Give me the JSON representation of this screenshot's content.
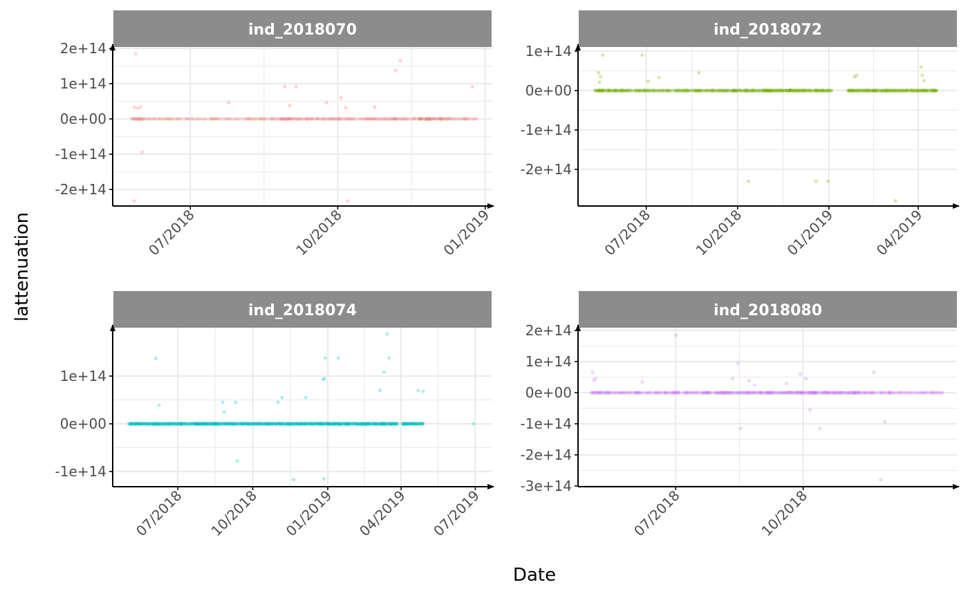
{
  "chart_data": {
    "type": "scatter",
    "layout": "facet_wrap 2x2, free scales",
    "xlabel": "Date",
    "ylabel": "lattenuation",
    "grid": true,
    "legend": "none",
    "colors": {
      "strip_bg": "#8c8c8c",
      "grid": "#ebebeb",
      "axis": "#000000",
      "tick_text": "#4d4d4d"
    },
    "panels": [
      {
        "title": "ind_2018070",
        "color": "#F8766D",
        "x_domain": [
          "2018-05-14",
          "2019-01-05"
        ],
        "y_domain": [
          -250000000000000.0,
          200000000000000.0
        ],
        "x_ticks": [
          {
            "date": "2018-07-01",
            "label": "07/2018"
          },
          {
            "date": "2018-10-01",
            "label": "10/2018"
          },
          {
            "date": "2019-01-01",
            "label": "01/2019"
          }
        ],
        "y_ticks": [
          {
            "value": 200000000000000.0,
            "label": "2e+14"
          },
          {
            "value": 100000000000000.0,
            "label": "1e+14"
          },
          {
            "value": 0,
            "label": "0e+00"
          },
          {
            "value": -100000000000000.0,
            "label": "-1e+14"
          },
          {
            "value": -200000000000000.0,
            "label": "-2e+14"
          }
        ],
        "band": [
          [
            "2018-05-25",
            "2018-06-03",
            0.9
          ],
          [
            "2018-06-03",
            "2018-08-20",
            0.45
          ],
          [
            "2018-08-20",
            "2018-11-15",
            0.6
          ],
          [
            "2018-11-15",
            "2018-12-10",
            0.9
          ],
          [
            "2018-12-10",
            "2018-12-27",
            0.5
          ]
        ],
        "outliers": [
          {
            "x": "2018-05-28",
            "y": 185000000000000.0
          },
          {
            "x": "2018-05-27",
            "y": 33000000000000.0
          },
          {
            "x": "2018-05-29",
            "y": 30000000000000.0
          },
          {
            "x": "2018-05-31",
            "y": 34000000000000.0
          },
          {
            "x": "2018-06-01",
            "y": -95000000000000.0
          },
          {
            "x": "2018-05-27",
            "y": -233000000000000.0
          },
          {
            "x": "2018-07-25",
            "y": 46000000000000.0
          },
          {
            "x": "2018-08-29",
            "y": 92000000000000.0
          },
          {
            "x": "2018-09-05",
            "y": 92000000000000.0
          },
          {
            "x": "2018-09-01",
            "y": 38000000000000.0
          },
          {
            "x": "2018-09-24",
            "y": 46000000000000.0
          },
          {
            "x": "2018-10-03",
            "y": 60000000000000.0
          },
          {
            "x": "2018-10-06",
            "y": 32000000000000.0
          },
          {
            "x": "2018-10-07",
            "y": -233000000000000.0
          },
          {
            "x": "2018-10-24",
            "y": 34000000000000.0
          },
          {
            "x": "2018-11-06",
            "y": 138000000000000.0
          },
          {
            "x": "2018-11-09",
            "y": 165000000000000.0
          },
          {
            "x": "2018-12-24",
            "y": 91000000000000.0
          }
        ]
      },
      {
        "title": "ind_2018072",
        "color": "#7CAE00",
        "x_domain": [
          "2018-04-24",
          "2019-05-10"
        ],
        "y_domain": [
          -300000000000000.0,
          100000000000000.0
        ],
        "x_ticks": [
          {
            "date": "2018-07-01",
            "label": "07/2018"
          },
          {
            "date": "2018-10-01",
            "label": "10/2018"
          },
          {
            "date": "2019-01-01",
            "label": "01/2019"
          },
          {
            "date": "2019-04-01",
            "label": "04/2019"
          }
        ],
        "y_ticks": [
          {
            "value": 100000000000000.0,
            "label": "1e+14"
          },
          {
            "value": 0,
            "label": "0e+00"
          },
          {
            "value": -100000000000000.0,
            "label": "-1e+14"
          },
          {
            "value": -200000000000000.0,
            "label": "-2e+14"
          }
        ],
        "band": [
          [
            "2018-05-10",
            "2018-06-10",
            0.85
          ],
          [
            "2018-06-10",
            "2018-08-20",
            0.55
          ],
          [
            "2018-08-20",
            "2018-10-15",
            0.65
          ],
          [
            "2018-10-15",
            "2019-01-05",
            0.85
          ],
          [
            "2019-01-20",
            "2019-04-20",
            0.85
          ]
        ],
        "outliers": [
          {
            "x": "2018-05-14",
            "y": 45000000000000.0
          },
          {
            "x": "2018-05-16",
            "y": 35000000000000.0
          },
          {
            "x": "2018-05-15",
            "y": 21000000000000.0
          },
          {
            "x": "2018-05-18",
            "y": 90000000000000.0
          },
          {
            "x": "2018-06-27",
            "y": 90000000000000.0
          },
          {
            "x": "2018-07-03",
            "y": 24000000000000.0
          },
          {
            "x": "2018-07-14",
            "y": 33000000000000.0
          },
          {
            "x": "2018-08-23",
            "y": 45000000000000.0
          },
          {
            "x": "2018-10-12",
            "y": -230000000000000.0
          },
          {
            "x": "2018-12-19",
            "y": -230000000000000.0
          },
          {
            "x": "2018-12-31",
            "y": -230000000000000.0
          },
          {
            "x": "2019-01-27",
            "y": 35000000000000.0
          },
          {
            "x": "2019-01-29",
            "y": 39000000000000.0
          },
          {
            "x": "2019-03-09",
            "y": -280000000000000.0
          },
          {
            "x": "2019-04-04",
            "y": 60000000000000.0
          },
          {
            "x": "2019-04-05",
            "y": 39000000000000.0
          },
          {
            "x": "2019-04-07",
            "y": 25000000000000.0
          }
        ]
      },
      {
        "title": "ind_2018074",
        "color": "#00BFC4",
        "x_domain": [
          "2018-04-13",
          "2019-07-21"
        ],
        "y_domain": [
          -130000000000000.0,
          200000000000000.0
        ],
        "x_ticks": [
          {
            "date": "2018-07-01",
            "label": "07/2018"
          },
          {
            "date": "2018-10-01",
            "label": "10/2018"
          },
          {
            "date": "2019-01-01",
            "label": "01/2019"
          },
          {
            "date": "2019-04-01",
            "label": "04/2019"
          },
          {
            "date": "2019-07-01",
            "label": "07/2019"
          }
        ],
        "y_ticks": [
          {
            "value": 100000000000000.0,
            "label": "1e+14"
          },
          {
            "value": 0,
            "label": "0e+00"
          },
          {
            "value": -100000000000000.0,
            "label": "-1e+14"
          }
        ],
        "band": [
          [
            "2018-05-01",
            "2019-03-28",
            0.9
          ],
          [
            "2019-04-02",
            "2019-04-28",
            0.9
          ]
        ],
        "outliers": [
          {
            "x": "2018-06-04",
            "y": 137000000000000.0
          },
          {
            "x": "2018-06-08",
            "y": 39000000000000.0
          },
          {
            "x": "2018-08-25",
            "y": 45000000000000.0
          },
          {
            "x": "2018-08-27",
            "y": 25000000000000.0
          },
          {
            "x": "2018-09-10",
            "y": 45000000000000.0
          },
          {
            "x": "2018-09-12",
            "y": -78000000000000.0
          },
          {
            "x": "2018-11-01",
            "y": 45000000000000.0
          },
          {
            "x": "2018-11-06",
            "y": 55000000000000.0
          },
          {
            "x": "2018-11-20",
            "y": -117000000000000.0
          },
          {
            "x": "2018-12-05",
            "y": 55000000000000.0
          },
          {
            "x": "2018-12-26",
            "y": 93000000000000.0
          },
          {
            "x": "2018-12-28",
            "y": 95000000000000.0
          },
          {
            "x": "2018-12-29",
            "y": 138000000000000.0
          },
          {
            "x": "2018-12-27",
            "y": -115000000000000.0
          },
          {
            "x": "2019-01-14",
            "y": 138000000000000.0
          },
          {
            "x": "2019-03-06",
            "y": 70000000000000.0
          },
          {
            "x": "2019-03-11",
            "y": 108000000000000.0
          },
          {
            "x": "2019-03-17",
            "y": 138000000000000.0
          },
          {
            "x": "2019-03-15",
            "y": 188000000000000.0
          },
          {
            "x": "2019-04-22",
            "y": 70000000000000.0
          },
          {
            "x": "2019-04-28",
            "y": 68000000000000.0
          },
          {
            "x": "2019-06-29",
            "y": 0
          }
        ]
      },
      {
        "title": "ind_2018080",
        "color": "#C77CFF",
        "x_domain": [
          "2018-04-22",
          "2019-01-20"
        ],
        "y_domain": [
          -300000000000000.0,
          200000000000000.0
        ],
        "x_ticks": [
          {
            "date": "2018-07-01",
            "label": "07/2018"
          },
          {
            "date": "2018-10-01",
            "label": "10/2018"
          }
        ],
        "y_ticks": [
          {
            "value": 200000000000000.0,
            "label": "2e+14"
          },
          {
            "value": 100000000000000.0,
            "label": "1e+14"
          },
          {
            "value": 0,
            "label": "0e+00"
          },
          {
            "value": -100000000000000.0,
            "label": "-1e+14"
          },
          {
            "value": -200000000000000.0,
            "label": "-2e+14"
          },
          {
            "value": -300000000000000.0,
            "label": "-3e+14"
          }
        ],
        "band": [
          [
            "2018-05-01",
            "2018-05-15",
            0.9
          ],
          [
            "2018-05-15",
            "2018-06-20",
            0.55
          ],
          [
            "2018-06-20",
            "2018-07-20",
            0.65
          ],
          [
            "2018-07-20",
            "2018-11-15",
            0.9
          ],
          [
            "2018-11-15",
            "2019-01-10",
            0.5
          ]
        ],
        "outliers": [
          {
            "x": "2018-05-02",
            "y": 65000000000000.0
          },
          {
            "x": "2018-05-03",
            "y": 40000000000000.0
          },
          {
            "x": "2018-05-04",
            "y": 45000000000000.0
          },
          {
            "x": "2018-06-07",
            "y": 35000000000000.0
          },
          {
            "x": "2018-07-01",
            "y": 185000000000000.0
          },
          {
            "x": "2018-08-11",
            "y": 45000000000000.0
          },
          {
            "x": "2018-08-15",
            "y": 95000000000000.0
          },
          {
            "x": "2018-08-17",
            "y": -115000000000000.0
          },
          {
            "x": "2018-08-23",
            "y": 38000000000000.0
          },
          {
            "x": "2018-08-27",
            "y": 25000000000000.0
          },
          {
            "x": "2018-09-19",
            "y": 30000000000000.0
          },
          {
            "x": "2018-09-29",
            "y": 60000000000000.0
          },
          {
            "x": "2018-10-03",
            "y": 45000000000000.0
          },
          {
            "x": "2018-10-06",
            "y": -56000000000000.0
          },
          {
            "x": "2018-10-13",
            "y": -115000000000000.0
          },
          {
            "x": "2018-11-21",
            "y": 65000000000000.0
          },
          {
            "x": "2018-11-26",
            "y": -280000000000000.0
          },
          {
            "x": "2018-11-29",
            "y": -93000000000000.0
          }
        ]
      }
    ]
  }
}
